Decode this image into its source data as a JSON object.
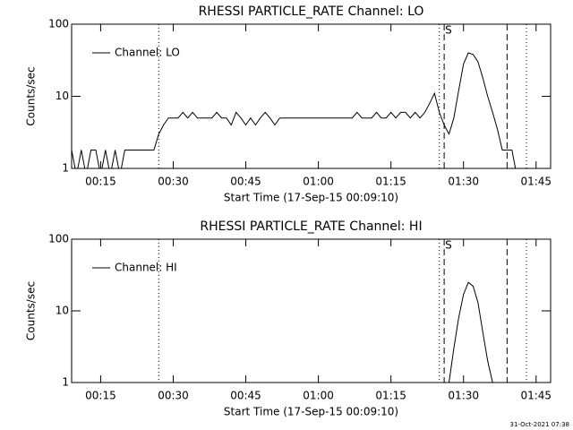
{
  "chart_data": [
    {
      "type": "line",
      "title": "RHESSI PARTICLE_RATE Channel: LO",
      "xlabel": "Start Time (17-Sep-15 00:09:10)",
      "ylabel": "Counts/sec",
      "log_y": true,
      "grid": false,
      "legend": "upper left",
      "xlim": [
        "00:09",
        "01:48"
      ],
      "xticks": [
        "00:15",
        "00:30",
        "00:45",
        "01:00",
        "01:15",
        "01:30",
        "01:45"
      ],
      "ylim": [
        1,
        100
      ],
      "yticks": [
        1,
        10,
        100
      ],
      "markers": [
        {
          "x": "00:27",
          "style": "dotted"
        },
        {
          "x": "01:25",
          "style": "dotted"
        },
        {
          "x": "01:26",
          "style": "dashed"
        },
        {
          "x": "01:39",
          "style": "dashed"
        },
        {
          "x": "01:43",
          "style": "dotted"
        }
      ],
      "annotations": [
        {
          "x": "01:26",
          "text": "S"
        }
      ],
      "series": [
        {
          "name": "Channel: LO",
          "color": "#000000",
          "x": [
            "00:09",
            "00:10",
            "00:11",
            "00:12",
            "00:13",
            "00:14",
            "00:15",
            "00:16",
            "00:17",
            "00:18",
            "00:19",
            "00:20",
            "00:21",
            "00:22",
            "00:23",
            "00:24",
            "00:25",
            "00:26",
            "00:27",
            "00:28",
            "00:29",
            "00:30",
            "00:31",
            "00:32",
            "00:33",
            "00:34",
            "00:35",
            "00:36",
            "00:37",
            "00:38",
            "00:39",
            "00:40",
            "00:41",
            "00:42",
            "00:43",
            "00:44",
            "00:45",
            "00:46",
            "00:47",
            "00:48",
            "00:49",
            "00:50",
            "00:51",
            "00:52",
            "00:53",
            "00:54",
            "00:55",
            "00:56",
            "00:57",
            "00:58",
            "00:59",
            "01:00",
            "01:01",
            "01:02",
            "01:03",
            "01:04",
            "01:05",
            "01:06",
            "01:07",
            "01:08",
            "01:09",
            "01:10",
            "01:11",
            "01:12",
            "01:13",
            "01:14",
            "01:15",
            "01:16",
            "01:17",
            "01:18",
            "01:19",
            "01:20",
            "01:21",
            "01:22",
            "01:23",
            "01:24",
            "01:25",
            "01:26",
            "01:27",
            "01:28",
            "01:29",
            "01:30",
            "01:31",
            "01:32",
            "01:33",
            "01:34",
            "01:35",
            "01:36",
            "01:37",
            "01:38",
            "01:39",
            "01:40",
            "01:41"
          ],
          "values": [
            1.8,
            0.8,
            1.8,
            0.8,
            1.8,
            1.8,
            0.8,
            1.8,
            0.8,
            1.8,
            0.8,
            1.8,
            1.8,
            1.8,
            1.8,
            1.8,
            1.8,
            1.8,
            3,
            4,
            5,
            5,
            5,
            6,
            5,
            6,
            5,
            5,
            5,
            5,
            6,
            5,
            5,
            4,
            6,
            5,
            4,
            5,
            4,
            5,
            6,
            5,
            4,
            5,
            5,
            5,
            5,
            5,
            5,
            5,
            5,
            5,
            5,
            5,
            5,
            5,
            5,
            5,
            5,
            6,
            5,
            5,
            5,
            6,
            5,
            5,
            6,
            5,
            6,
            6,
            5,
            6,
            5,
            6,
            8,
            11,
            6,
            4,
            3,
            5,
            12,
            28,
            40,
            38,
            30,
            18,
            10,
            6,
            3.5,
            1.8,
            1.8,
            1.8,
            0.8
          ]
        }
      ]
    },
    {
      "type": "line",
      "title": "RHESSI PARTICLE_RATE Channel: HI",
      "xlabel": "Start Time (17-Sep-15 00:09:10)",
      "ylabel": "Counts/sec",
      "log_y": true,
      "grid": false,
      "legend": "upper left",
      "xlim": [
        "00:09",
        "01:48"
      ],
      "xticks": [
        "00:15",
        "00:30",
        "00:45",
        "01:00",
        "01:15",
        "01:30",
        "01:45"
      ],
      "ylim": [
        1,
        100
      ],
      "yticks": [
        1,
        10,
        100
      ],
      "markers": [
        {
          "x": "00:27",
          "style": "dotted"
        },
        {
          "x": "01:25",
          "style": "dotted"
        },
        {
          "x": "01:26",
          "style": "dashed"
        },
        {
          "x": "01:39",
          "style": "dashed"
        },
        {
          "x": "01:43",
          "style": "dotted"
        }
      ],
      "annotations": [
        {
          "x": "01:26",
          "text": "S"
        }
      ],
      "series": [
        {
          "name": "Channel: HI",
          "color": "#000000",
          "x": [
            "01:27",
            "01:28",
            "01:29",
            "01:30",
            "01:31",
            "01:32",
            "01:33",
            "01:34",
            "01:35",
            "01:36"
          ],
          "values": [
            1,
            3,
            8,
            17,
            25,
            22,
            13,
            5,
            2,
            1
          ]
        }
      ]
    }
  ],
  "footer": "31-Oct-2021 07:38"
}
